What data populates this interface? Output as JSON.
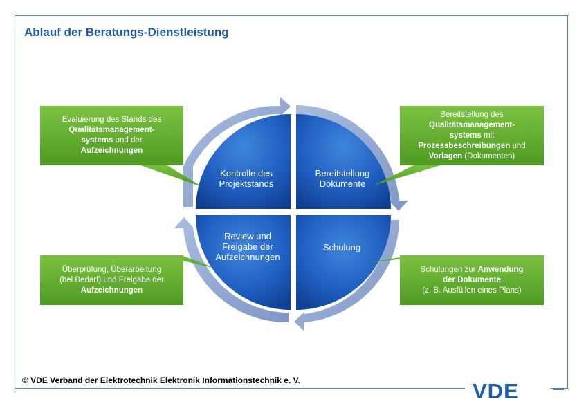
{
  "title": "Ablauf der Beratungs-Dienstleistung",
  "footer": "© VDE Verband der Elektrotechnik Elektronik Informationstechnik e. V.",
  "logo": "VDE",
  "quadrants": {
    "top_left": "Kontrolle des Projektstands",
    "top_right": "Bereitstellung Dokumente",
    "bottom_left": "Review und Freigabe der Aufzeichnungen",
    "bottom_right": "Schulung"
  },
  "callouts": {
    "top_left": [
      {
        "t": "Evaluierung des Stands des",
        "b": false
      },
      {
        "t": "Qualitätsmanagement-",
        "b": true
      },
      {
        "t": "systems",
        "b": true,
        "tail": " und der"
      },
      {
        "t": "Aufzeichnungen",
        "b": true
      }
    ],
    "top_right": [
      {
        "t": "Bereitstellung des",
        "b": false
      },
      {
        "t": "Qualitätsmanagement-",
        "b": true
      },
      {
        "t": "systems",
        "b": true,
        "tail": " mit"
      },
      {
        "t": "Prozessbeschreibungen",
        "b": true,
        "tail": " und"
      },
      {
        "t": "Vorlagen",
        "b": true,
        "tail": " (Dokumenten)"
      }
    ],
    "bottom_left": [
      {
        "t": "Überprüfung, Überarbeitung",
        "b": false
      },
      {
        "t": "(bei Bedarf) und Freigabe der",
        "b": false
      },
      {
        "t": "Aufzeichnungen",
        "b": true
      }
    ],
    "bottom_right": [
      {
        "t": "Schulungen zur ",
        "b": false,
        "tailb": "Anwendung"
      },
      {
        "t": "der Dokumente",
        "b": true
      },
      {
        "t": "(z. B. Ausfüllen eines Plans)",
        "b": false
      }
    ]
  },
  "colors": {
    "frame": "#4f81bd",
    "title": "#1f5aa5",
    "quadrant_blue": "#1f5ec0",
    "ring": "#8fa6cf",
    "callout_green": "#5fa82a",
    "logo": "#1d5ea8"
  }
}
